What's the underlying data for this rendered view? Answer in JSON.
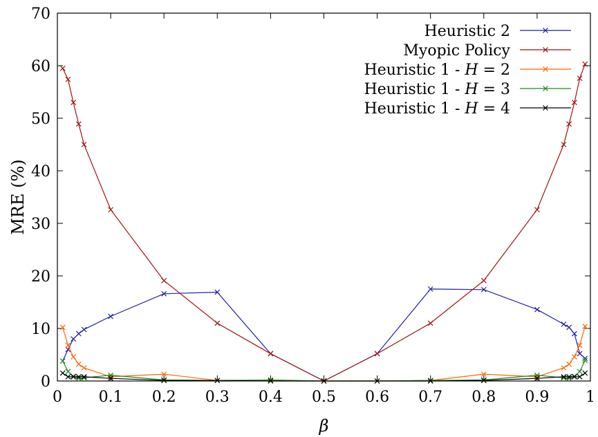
{
  "chart_data": {
    "type": "line",
    "title": "",
    "xlabel": "β",
    "ylabel": "MRE (%)",
    "xlim": [
      0,
      1
    ],
    "ylim": [
      0,
      70
    ],
    "xticks": [
      0,
      0.1,
      0.2,
      0.3,
      0.4,
      0.5,
      0.6,
      0.7,
      0.8,
      0.9,
      1
    ],
    "xtick_labels": [
      "0",
      "0.1",
      "0.2",
      "0.3",
      "0.4",
      "0.5",
      "0.6",
      "0.7",
      "0.8",
      "0.9",
      "1"
    ],
    "yticks": [
      0,
      10,
      20,
      30,
      40,
      50,
      60,
      70
    ],
    "ytick_labels": [
      "0",
      "10",
      "20",
      "30",
      "40",
      "50",
      "60",
      "70"
    ],
    "grid": false,
    "legend_position": "top-right",
    "series": [
      {
        "name": "Heuristic 2",
        "color": "#1f1fa8",
        "marker": "x",
        "points": [
          [
            0.01,
            3.8
          ],
          [
            0.02,
            6.0
          ],
          [
            0.03,
            8.0
          ],
          [
            0.04,
            9.0
          ],
          [
            0.05,
            9.8
          ],
          [
            0.1,
            12.3
          ],
          [
            0.2,
            16.6
          ],
          [
            0.3,
            16.9
          ],
          [
            0.4,
            5.2
          ],
          [
            0.5,
            0.0
          ],
          [
            0.6,
            5.2
          ],
          [
            0.7,
            17.5
          ],
          [
            0.8,
            17.4
          ],
          [
            0.9,
            13.6
          ],
          [
            0.95,
            10.8
          ],
          [
            0.96,
            10.2
          ],
          [
            0.97,
            9.0
          ],
          [
            0.98,
            5.2
          ],
          [
            0.99,
            4.3
          ]
        ]
      },
      {
        "name": "Myopic Policy",
        "color": "#a01010",
        "marker": "x",
        "points": [
          [
            0.01,
            59.5
          ],
          [
            0.02,
            57.4
          ],
          [
            0.03,
            53.0
          ],
          [
            0.04,
            48.9
          ],
          [
            0.05,
            45.0
          ],
          [
            0.1,
            32.6
          ],
          [
            0.2,
            19.1
          ],
          [
            0.3,
            11.0
          ],
          [
            0.4,
            5.2
          ],
          [
            0.5,
            0.0
          ],
          [
            0.6,
            5.2
          ],
          [
            0.7,
            11.0
          ],
          [
            0.8,
            19.1
          ],
          [
            0.9,
            32.6
          ],
          [
            0.95,
            45.0
          ],
          [
            0.96,
            48.9
          ],
          [
            0.97,
            53.0
          ],
          [
            0.98,
            57.6
          ],
          [
            0.99,
            60.3
          ]
        ]
      },
      {
        "name": "Heuristic 1 - H = 2",
        "name_parts": [
          "Heuristic 1 - ",
          "H",
          " = 2"
        ],
        "color": "#ff6600",
        "marker": "x",
        "points": [
          [
            0.01,
            10.2
          ],
          [
            0.02,
            6.8
          ],
          [
            0.03,
            4.6
          ],
          [
            0.04,
            3.2
          ],
          [
            0.05,
            2.5
          ],
          [
            0.1,
            0.8
          ],
          [
            0.2,
            1.3
          ],
          [
            0.3,
            0.1
          ],
          [
            0.4,
            0.1
          ],
          [
            0.5,
            0.0
          ],
          [
            0.6,
            0.0
          ],
          [
            0.7,
            0.1
          ],
          [
            0.8,
            1.3
          ],
          [
            0.9,
            0.8
          ],
          [
            0.95,
            2.5
          ],
          [
            0.96,
            3.2
          ],
          [
            0.97,
            4.6
          ],
          [
            0.98,
            6.8
          ],
          [
            0.99,
            10.4
          ]
        ]
      },
      {
        "name": "Heuristic 1 - H = 3",
        "name_parts": [
          "Heuristic 1 - ",
          "H",
          " = 3"
        ],
        "color": "#1f8a1f",
        "marker": "x",
        "points": [
          [
            0.01,
            3.8
          ],
          [
            0.02,
            1.8
          ],
          [
            0.03,
            0.9
          ],
          [
            0.04,
            0.5
          ],
          [
            0.05,
            0.6
          ],
          [
            0.1,
            1.1
          ],
          [
            0.2,
            0.2
          ],
          [
            0.3,
            0.1
          ],
          [
            0.4,
            0.2
          ],
          [
            0.5,
            0.0
          ],
          [
            0.6,
            0.0
          ],
          [
            0.7,
            0.1
          ],
          [
            0.8,
            0.2
          ],
          [
            0.9,
            1.1
          ],
          [
            0.95,
            0.6
          ],
          [
            0.96,
            0.5
          ],
          [
            0.97,
            0.9
          ],
          [
            0.98,
            1.8
          ],
          [
            0.99,
            3.9
          ]
        ]
      },
      {
        "name": "Heuristic 1 - H = 4",
        "name_parts": [
          "Heuristic 1 - ",
          "H",
          " = 4"
        ],
        "color": "#000000",
        "marker": "x",
        "points": [
          [
            0.01,
            1.5
          ],
          [
            0.02,
            0.8
          ],
          [
            0.03,
            0.8
          ],
          [
            0.04,
            0.8
          ],
          [
            0.05,
            0.8
          ],
          [
            0.1,
            0.5
          ],
          [
            0.2,
            0.1
          ],
          [
            0.3,
            0.1
          ],
          [
            0.4,
            0.0
          ],
          [
            0.5,
            0.0
          ],
          [
            0.6,
            0.0
          ],
          [
            0.7,
            0.0
          ],
          [
            0.8,
            0.1
          ],
          [
            0.9,
            0.5
          ],
          [
            0.95,
            0.8
          ],
          [
            0.96,
            0.8
          ],
          [
            0.97,
            0.8
          ],
          [
            0.98,
            0.8
          ],
          [
            0.99,
            1.5
          ]
        ]
      }
    ]
  }
}
